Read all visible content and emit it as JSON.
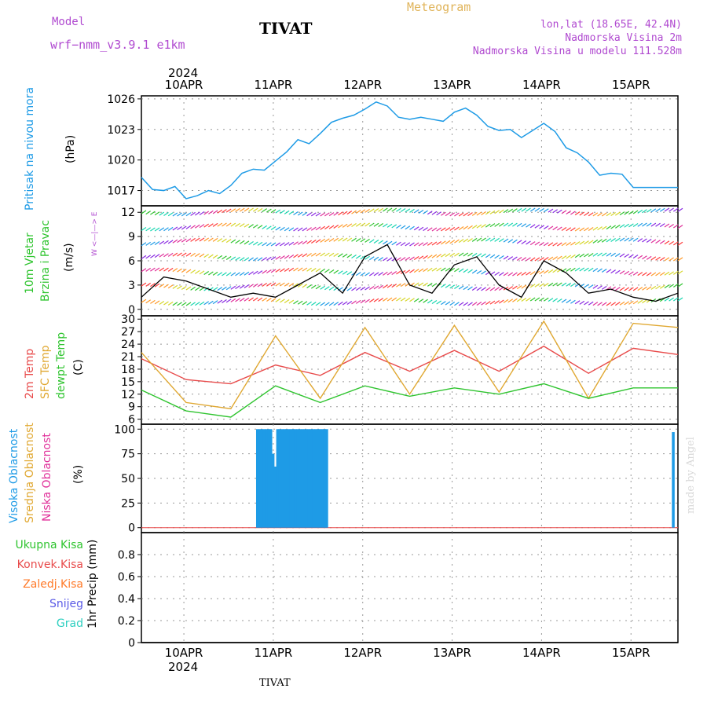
{
  "header": {
    "model_label": "Model",
    "model_name": "wrf−nmm_v3.9.1  e1km",
    "station": "TIVAT",
    "meteogram_label": "Meteogram",
    "lonlat": "lon,lat (18.65E, 42.4N)",
    "elevation": "Nadmorska Visina 2m",
    "model_elevation": "Nadmorska Visina u modelu 111.528m",
    "year_top": "2024",
    "year_bottom": "2024",
    "footer_station": "TIVAT",
    "watermark": "made by Angel"
  },
  "panel_labels": {
    "pressure": {
      "name": "Pritisak na nivou mora",
      "unit": "(hPa)"
    },
    "wind": {
      "name1": "10m Vjetar",
      "name2": "Brzina i Pravac",
      "unit": "(m/s)",
      "compass": "W <—|—> E"
    },
    "temp": {
      "name1": "2m Temp",
      "name2": "SFC Temp",
      "name3": "dewpt Temp",
      "unit": "(C)"
    },
    "cloud": {
      "name1": "Visoka Oblacnost",
      "name2": "Srednja Oblacnost",
      "name3": "Niska Oblacnost",
      "unit": "(%)"
    },
    "precip": {
      "unit": "1hr Precip (mm)"
    }
  },
  "precip_legend": [
    "Ukupna Kisa",
    "Konvek.Kisa",
    "Zaledj.Kisa",
    "Snijeg",
    "Grad"
  ],
  "colors": {
    "pressure": "#1e9be6",
    "temp2m": "#e84b4b",
    "sfc": "#e0a832",
    "dewpt": "#2fc42f",
    "cloud": "#1e9be6",
    "rain": "#2fc42f",
    "conv": "#e84b4b",
    "frz": "#ff7a29",
    "snow": "#5a5ae6",
    "hail": "#2ecfc0",
    "purple": "#b04ad0",
    "orange": "#e0b45a"
  },
  "chart_data": [
    {
      "type": "line",
      "title": "Pritisak na nivou mora",
      "ylabel": "(hPa)",
      "x_categories": [
        "10APR",
        "11APR",
        "12APR",
        "13APR",
        "14APR",
        "15APR"
      ],
      "ylim": [
        1015.5,
        1026.3
      ],
      "yticks": [
        1017,
        1020,
        1023,
        1026
      ],
      "series": [
        {
          "x": [
            0.0,
            0.25,
            0.5,
            0.75,
            1.0,
            1.25,
            1.5,
            1.75,
            2.0,
            2.25,
            2.5,
            2.75,
            3.0,
            3.25,
            3.5,
            3.75,
            4.0,
            4.25,
            4.5,
            4.75,
            5.0,
            5.25,
            5.5,
            5.75,
            6.0,
            6.25,
            6.5,
            6.75,
            7.0,
            7.25,
            7.5,
            7.75,
            8.0,
            8.25,
            8.5,
            8.75,
            9.0,
            9.25,
            9.5,
            9.75,
            10.0,
            10.25,
            10.5,
            10.75,
            11.0,
            11.25,
            11.5,
            11.75,
            12.0
          ],
          "values": [
            1018.3,
            1017.1,
            1017.0,
            1017.4,
            1016.2,
            1016.5,
            1017.0,
            1016.7,
            1017.5,
            1018.7,
            1019.1,
            1019.0,
            1019.9,
            1020.8,
            1022.0,
            1021.6,
            1022.6,
            1023.7,
            1024.1,
            1024.4,
            1025.0,
            1025.7,
            1025.3,
            1024.2,
            1024.0,
            1024.2,
            1024.0,
            1023.8,
            1024.7,
            1025.1,
            1024.4,
            1023.3,
            1022.9,
            1023.0,
            1022.2,
            1022.9,
            1023.6,
            1022.8,
            1021.2,
            1020.7,
            1019.8,
            1018.5,
            1018.7,
            1018.6,
            1017.3,
            1017.3,
            1017.3,
            1017.3,
            1017.3
          ]
        }
      ]
    },
    {
      "type": "line",
      "title": "10m Vjetar Brzina i Pravac",
      "ylabel": "(m/s)",
      "ylim": [
        -0.8,
        12.8
      ],
      "yticks": [
        0,
        3,
        6,
        9,
        12
      ],
      "series": [
        {
          "name": "Brzina",
          "x": [
            0,
            0.5,
            1,
            1.5,
            2,
            2.5,
            3,
            3.5,
            4,
            4.5,
            5,
            5.5,
            6,
            6.5,
            7,
            7.5,
            8,
            8.5,
            9,
            9.5,
            10,
            10.5,
            11,
            11.5,
            12
          ],
          "values": [
            1.5,
            4.0,
            3.5,
            2.5,
            1.5,
            2.0,
            1.5,
            3.0,
            4.5,
            2.0,
            6.5,
            8.0,
            3.0,
            2.0,
            5.5,
            6.5,
            3.0,
            1.5,
            6.0,
            4.5,
            2.0,
            2.5,
            1.5,
            1.0,
            2.0
          ]
        }
      ]
    },
    {
      "type": "line",
      "title": "2m Temp / SFC Temp / dewpt Temp",
      "ylabel": "(C)",
      "ylim": [
        4.8,
        30.8
      ],
      "yticks": [
        6,
        9,
        12,
        15,
        18,
        21,
        24,
        27,
        30
      ],
      "series": [
        {
          "name": "2m Temp",
          "x": [
            0,
            1,
            2,
            3,
            4,
            5,
            6,
            7,
            8,
            9,
            10,
            11,
            12
          ],
          "values": [
            20.5,
            15.5,
            14.5,
            19.0,
            16.5,
            22.0,
            17.5,
            22.5,
            17.5,
            23.5,
            17.0,
            23.0,
            21.5
          ]
        },
        {
          "name": "SFC Temp",
          "x": [
            0,
            1,
            2,
            3,
            4,
            5,
            6,
            7,
            8,
            9,
            10,
            11,
            12
          ],
          "values": [
            22.0,
            10.0,
            8.5,
            26.0,
            11.0,
            28.0,
            12.0,
            28.5,
            12.5,
            29.5,
            11.0,
            29.0,
            28.0
          ]
        },
        {
          "name": "dewpt Temp",
          "x": [
            0,
            1,
            2,
            3,
            4,
            5,
            6,
            7,
            8,
            9,
            10,
            11,
            12
          ],
          "values": [
            13.0,
            8.0,
            6.5,
            14.0,
            10.0,
            14.0,
            11.5,
            13.5,
            12.0,
            14.5,
            11.0,
            13.5,
            13.5
          ]
        }
      ]
    },
    {
      "type": "bar",
      "title": "Oblacnost",
      "ylabel": "(%)",
      "ylim": [
        -5,
        105
      ],
      "yticks": [
        0,
        25,
        50,
        75,
        100
      ],
      "series": [
        {
          "name": "Visoka Oblacnost",
          "x": [
            2.6,
            2.65,
            2.7,
            2.75,
            2.8,
            2.85,
            2.9,
            2.95,
            3.0,
            3.05,
            3.1,
            3.15,
            3.2,
            3.25,
            3.3,
            3.35,
            3.4,
            3.45,
            3.5,
            3.55,
            3.6,
            3.65,
            3.7,
            3.75,
            3.8,
            3.85,
            3.9,
            3.95,
            4.0,
            4.05,
            4.1,
            4.15,
            11.9
          ],
          "values": [
            100,
            100,
            100,
            100,
            100,
            100,
            100,
            75,
            62,
            100,
            100,
            100,
            100,
            100,
            100,
            100,
            100,
            100,
            100,
            100,
            100,
            100,
            100,
            100,
            100,
            100,
            100,
            100,
            100,
            100,
            100,
            100,
            97
          ]
        }
      ]
    },
    {
      "type": "line",
      "title": "1hr Precip",
      "ylabel": "1hr Precip (mm)",
      "ylim": [
        0,
        1.0
      ],
      "yticks": [
        0,
        0.2,
        0.4,
        0.6,
        0.8
      ],
      "series": [
        {
          "name": "Ukupna Kisa",
          "x": [
            0,
            12
          ],
          "values": [
            0,
            0
          ]
        }
      ]
    }
  ]
}
